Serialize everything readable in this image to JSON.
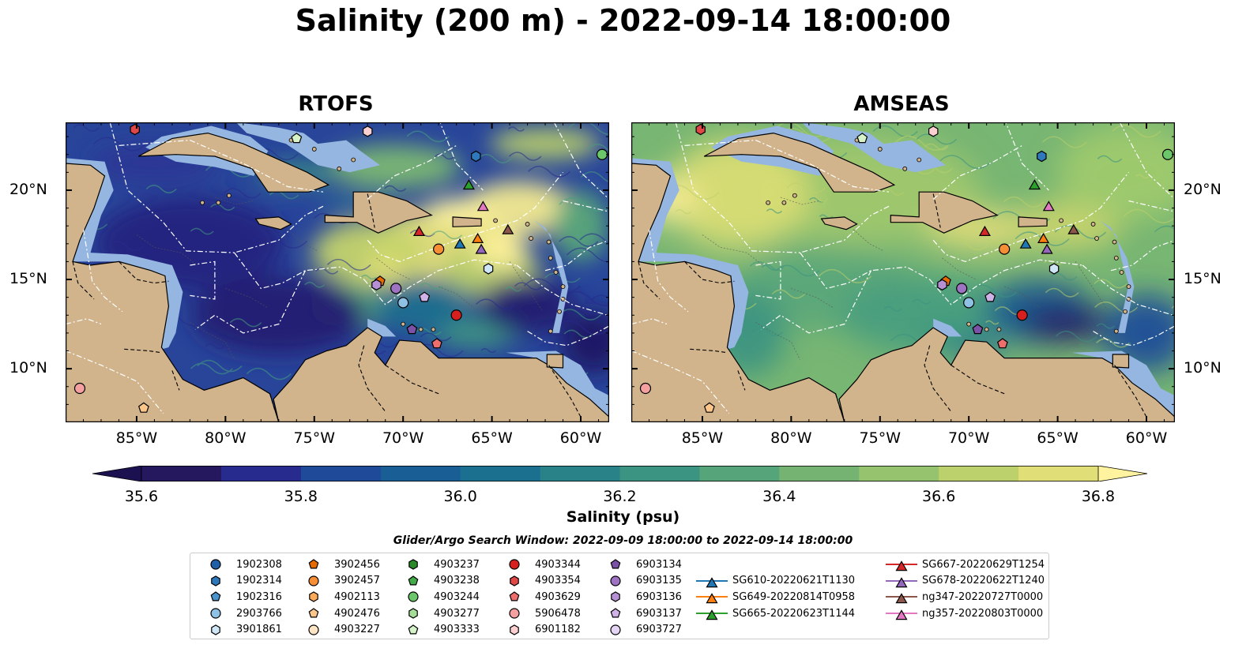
{
  "title": "Salinity (200 m) - 2022-09-14 18:00:00",
  "panels": [
    {
      "title": "RTOFS",
      "model": "rtofs"
    },
    {
      "title": "AMSEAS",
      "model": "amseas"
    }
  ],
  "map_extent": {
    "lon_min": -89,
    "lon_max": -58.4,
    "lat_min": 7,
    "lat_max": 23.8
  },
  "lon_ticks": [
    "85°W",
    "80°W",
    "75°W",
    "70°W",
    "65°W",
    "60°W"
  ],
  "lat_ticks": [
    "20°N",
    "15°N",
    "10°N"
  ],
  "colorbar": {
    "label": "Salinity (psu)",
    "min": 35.55,
    "max": 36.95,
    "ticks": [
      "35.6",
      "35.8",
      "36.0",
      "36.2",
      "36.4",
      "36.6",
      "36.8"
    ],
    "colors": [
      "#26185f",
      "#262b8d",
      "#1f4a9a",
      "#195e95",
      "#1b708f",
      "#288288",
      "#3b9381",
      "#55a47a",
      "#75b373",
      "#96c36d",
      "#bcd06c",
      "#e0de76"
    ],
    "under_color": "#1c1150",
    "over_color": "#fff3a0"
  },
  "search_window": "Glider/Argo Search Window: 2022-09-09 18:00:00 to 2022-09-14 18:00:00",
  "colors": {
    "land": "#d1b48c",
    "shelf": "#95b6e0",
    "eez": "#ffffff"
  },
  "legend": [
    {
      "label": "1902308",
      "marker": "circle",
      "color": "#1f5fa8"
    },
    {
      "label": "1902314",
      "marker": "hexagon",
      "color": "#2f78bb"
    },
    {
      "label": "1902316",
      "marker": "pentagon",
      "color": "#4b93cc"
    },
    {
      "label": "2903766",
      "marker": "circle",
      "color": "#8ec1e4"
    },
    {
      "label": "3901861",
      "marker": "hexagon",
      "color": "#cfe6f7"
    },
    {
      "label": "3902456",
      "marker": "pentagon",
      "color": "#e66a00"
    },
    {
      "label": "3902457",
      "marker": "circle",
      "color": "#f58e35"
    },
    {
      "label": "4902113",
      "marker": "hexagon",
      "color": "#fbaa5a"
    },
    {
      "label": "4902476",
      "marker": "pentagon",
      "color": "#fcc68b"
    },
    {
      "label": "4903227",
      "marker": "circle",
      "color": "#fde4c4"
    },
    {
      "label": "4903237",
      "marker": "hexagon",
      "color": "#2a8a2a"
    },
    {
      "label": "4903238",
      "marker": "pentagon",
      "color": "#41ab48"
    },
    {
      "label": "4903244",
      "marker": "circle",
      "color": "#6cc76a"
    },
    {
      "label": "4903277",
      "marker": "hexagon",
      "color": "#a5dc98"
    },
    {
      "label": "4903333",
      "marker": "pentagon",
      "color": "#d5f2c8"
    },
    {
      "label": "4903344",
      "marker": "circle",
      "color": "#d62020"
    },
    {
      "label": "4903354",
      "marker": "hexagon",
      "color": "#e04848"
    },
    {
      "label": "4903629",
      "marker": "pentagon",
      "color": "#ee6e6e"
    },
    {
      "label": "5906478",
      "marker": "circle",
      "color": "#f5a0a0"
    },
    {
      "label": "6901182",
      "marker": "hexagon",
      "color": "#fcd0d0"
    },
    {
      "label": "6903134",
      "marker": "pentagon",
      "color": "#7b52a6"
    },
    {
      "label": "6903135",
      "marker": "circle",
      "color": "#9d73c2"
    },
    {
      "label": "6903136",
      "marker": "hexagon",
      "color": "#b690d4"
    },
    {
      "label": "6903137",
      "marker": "pentagon",
      "color": "#cfb2e6"
    },
    {
      "label": "6903727",
      "marker": "circle",
      "color": "#e6d4f4"
    },
    {
      "label": "SG610-20220621T1130",
      "marker": "triangle-line",
      "color": "#1f77b4"
    },
    {
      "label": "SG649-20220814T0958",
      "marker": "triangle-line",
      "color": "#ff7f0e"
    },
    {
      "label": "SG665-20220623T1144",
      "marker": "triangle-line",
      "color": "#2ca02c"
    },
    {
      "label": "SG667-20220629T1254",
      "marker": "triangle-line",
      "color": "#d62728"
    },
    {
      "label": "SG678-20220622T1240",
      "marker": "triangle-line",
      "color": "#9467bd"
    },
    {
      "label": "ng347-20220727T0000",
      "marker": "triangle-line",
      "color": "#8c564b"
    },
    {
      "label": "ng357-20220803T0000",
      "marker": "triangle-line",
      "color": "#e377c2"
    }
  ],
  "platform_positions": [
    {
      "lon": -85.1,
      "lat": 23.4,
      "marker": "hexagon",
      "color": "#e04848"
    },
    {
      "lon": -72.0,
      "lat": 23.3,
      "marker": "hexagon",
      "color": "#fcd0d0"
    },
    {
      "lon": -76.0,
      "lat": 22.9,
      "marker": "pentagon",
      "color": "#d5f2c8"
    },
    {
      "lon": -58.8,
      "lat": 22.0,
      "marker": "circle",
      "color": "#6cc76a"
    },
    {
      "lon": -65.9,
      "lat": 21.9,
      "marker": "hexagon",
      "color": "#2f78bb"
    },
    {
      "lon": -66.3,
      "lat": 20.4,
      "marker": "triangle",
      "color": "#2ca02c"
    },
    {
      "lon": -65.5,
      "lat": 19.2,
      "marker": "triangle",
      "color": "#e377c2"
    },
    {
      "lon": -69.1,
      "lat": 17.8,
      "marker": "triangle",
      "color": "#d62728"
    },
    {
      "lon": -64.1,
      "lat": 17.9,
      "marker": "triangle",
      "color": "#8c564b"
    },
    {
      "lon": -65.8,
      "lat": 17.4,
      "marker": "triangle",
      "color": "#ff7f0e"
    },
    {
      "lon": -66.8,
      "lat": 17.1,
      "marker": "triangle",
      "color": "#1f77b4"
    },
    {
      "lon": -65.6,
      "lat": 16.8,
      "marker": "triangle",
      "color": "#9467bd"
    },
    {
      "lon": -68.0,
      "lat": 16.7,
      "marker": "circle",
      "color": "#f58e35"
    },
    {
      "lon": -65.2,
      "lat": 15.6,
      "marker": "hexagon",
      "color": "#cfe6f7"
    },
    {
      "lon": -71.3,
      "lat": 14.9,
      "marker": "pentagon",
      "color": "#e66a00"
    },
    {
      "lon": -71.5,
      "lat": 14.7,
      "marker": "hexagon",
      "color": "#b690d4"
    },
    {
      "lon": -70.4,
      "lat": 14.5,
      "marker": "circle",
      "color": "#9d73c2"
    },
    {
      "lon": -68.8,
      "lat": 14.0,
      "marker": "pentagon",
      "color": "#cfb2e6"
    },
    {
      "lon": -70.0,
      "lat": 13.7,
      "marker": "circle",
      "color": "#8ec1e4"
    },
    {
      "lon": -67.0,
      "lat": 13.0,
      "marker": "circle",
      "color": "#d62020"
    },
    {
      "lon": -69.5,
      "lat": 12.2,
      "marker": "pentagon",
      "color": "#7b52a6"
    },
    {
      "lon": -68.1,
      "lat": 11.4,
      "marker": "pentagon",
      "color": "#ee6e6e"
    },
    {
      "lon": -88.2,
      "lat": 8.9,
      "marker": "circle",
      "color": "#f5a0a0"
    },
    {
      "lon": -84.6,
      "lat": 7.8,
      "marker": "pentagon",
      "color": "#fcc68b"
    }
  ]
}
